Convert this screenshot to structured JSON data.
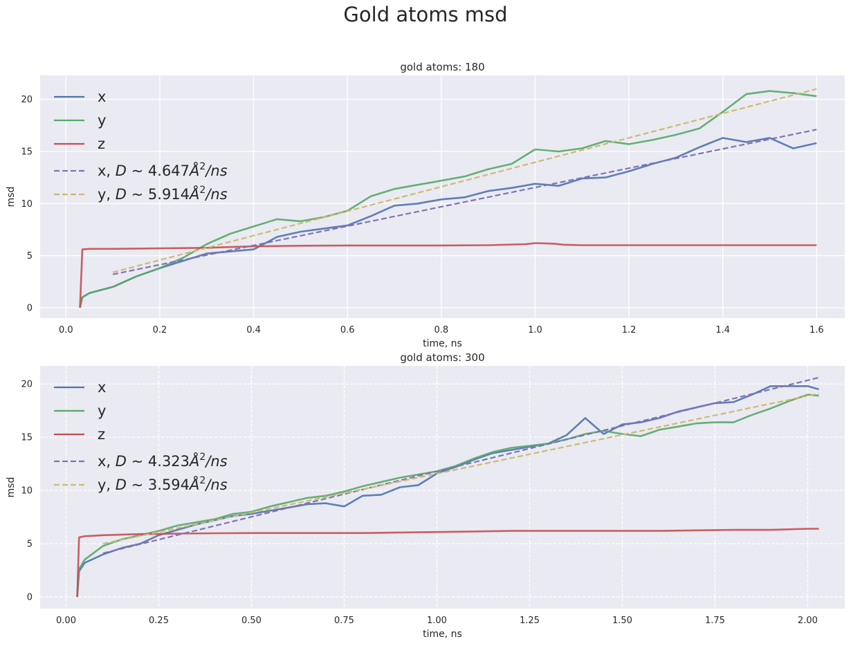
{
  "figure": {
    "suptitle": "Gold atoms msd",
    "background": "#ffffff",
    "axes_facecolor": "#eaeaf2",
    "grid_color": "#ffffff"
  },
  "chart_data": [
    {
      "type": "line",
      "title": "gold atoms: 180",
      "xlabel": "time, ns",
      "ylabel": "msd",
      "xlim": [
        -0.055,
        1.66
      ],
      "ylim": [
        -1.0,
        22.3
      ],
      "xticks": [
        0.0,
        0.2,
        0.4,
        0.6,
        0.8,
        1.0,
        1.2,
        1.4,
        1.6
      ],
      "xtick_labels": [
        "0.0",
        "0.2",
        "0.4",
        "0.6",
        "0.8",
        "1.0",
        "1.2",
        "1.4",
        "1.6"
      ],
      "yticks": [
        0,
        5,
        10,
        15,
        20
      ],
      "ytick_labels": [
        "0",
        "5",
        "10",
        "15",
        "20"
      ],
      "grid": "solid",
      "legend_position": "upper-left",
      "series": [
        {
          "name": "x",
          "color": "#4c72b0",
          "style": "solid",
          "x": [
            0.03,
            0.035,
            0.05,
            0.1,
            0.15,
            0.2,
            0.25,
            0.3,
            0.35,
            0.4,
            0.45,
            0.5,
            0.55,
            0.6,
            0.65,
            0.7,
            0.75,
            0.8,
            0.85,
            0.9,
            0.95,
            1.0,
            1.05,
            1.1,
            1.15,
            1.2,
            1.25,
            1.3,
            1.35,
            1.4,
            1.45,
            1.5,
            1.55,
            1.6
          ],
          "y": [
            0.0,
            1.0,
            1.4,
            2.0,
            3.0,
            3.8,
            4.5,
            5.2,
            5.4,
            5.6,
            6.8,
            7.3,
            7.6,
            7.9,
            8.8,
            9.8,
            10.0,
            10.4,
            10.6,
            11.2,
            11.5,
            11.9,
            11.7,
            12.4,
            12.5,
            13.1,
            13.8,
            14.4,
            15.4,
            16.3,
            15.9,
            16.3,
            15.3,
            15.8
          ]
        },
        {
          "name": "y",
          "color": "#55a868",
          "style": "solid",
          "x": [
            0.03,
            0.035,
            0.05,
            0.1,
            0.15,
            0.2,
            0.25,
            0.3,
            0.35,
            0.4,
            0.45,
            0.5,
            0.55,
            0.6,
            0.65,
            0.7,
            0.75,
            0.8,
            0.85,
            0.9,
            0.95,
            1.0,
            1.05,
            1.1,
            1.15,
            1.2,
            1.25,
            1.3,
            1.35,
            1.4,
            1.45,
            1.5,
            1.55,
            1.6
          ],
          "y": [
            0.0,
            1.0,
            1.4,
            2.0,
            3.0,
            3.8,
            4.8,
            6.1,
            7.1,
            7.8,
            8.5,
            8.3,
            8.7,
            9.3,
            10.7,
            11.4,
            11.8,
            12.2,
            12.6,
            13.3,
            13.8,
            15.2,
            15.0,
            15.3,
            16.0,
            15.7,
            16.1,
            16.6,
            17.2,
            18.8,
            20.5,
            20.8,
            20.6,
            20.3
          ]
        },
        {
          "name": "z",
          "color": "#c44e52",
          "style": "solid",
          "x": [
            0.03,
            0.035,
            0.05,
            0.1,
            0.2,
            0.3,
            0.4,
            0.5,
            0.6,
            0.7,
            0.8,
            0.9,
            0.98,
            1.0,
            1.04,
            1.06,
            1.1,
            1.2,
            1.3,
            1.4,
            1.5,
            1.6
          ],
          "y": [
            0.0,
            5.6,
            5.65,
            5.65,
            5.7,
            5.75,
            5.9,
            5.95,
            5.98,
            5.98,
            5.98,
            6.0,
            6.1,
            6.2,
            6.15,
            6.05,
            6.0,
            6.0,
            6.0,
            6.0,
            6.0,
            6.0
          ]
        },
        {
          "name": "x, D ~ 4.647Å²/ns",
          "color": "#8172b2",
          "style": "dashed",
          "x": [
            0.1,
            1.6
          ],
          "y": [
            3.2,
            17.1
          ]
        },
        {
          "name": "y, D ~ 5.914Å²/ns",
          "color": "#ccb974",
          "style": "dashed",
          "x": [
            0.1,
            1.6
          ],
          "y": [
            3.4,
            21.0
          ]
        }
      ],
      "legend_entries": [
        {
          "label": "x"
        },
        {
          "label": "y"
        },
        {
          "label": "z"
        },
        {
          "pre": "x, ",
          "math": "D",
          "op": " ~ ",
          "num": "4.647",
          "unit": "Å",
          "sup": "2",
          "tail": "/ns"
        },
        {
          "pre": "y, ",
          "math": "D",
          "op": " ~ ",
          "num": "5.914",
          "unit": "Å",
          "sup": "2",
          "tail": "/ns"
        }
      ]
    },
    {
      "type": "line",
      "title": "gold atoms: 300",
      "xlabel": "time, ns",
      "ylabel": "msd",
      "xlim": [
        -0.07,
        2.1
      ],
      "ylim": [
        -1.1,
        21.7
      ],
      "xticks": [
        0.0,
        0.25,
        0.5,
        0.75,
        1.0,
        1.25,
        1.5,
        1.75,
        2.0
      ],
      "xtick_labels": [
        "0.00",
        "0.25",
        "0.50",
        "0.75",
        "1.00",
        "1.25",
        "1.50",
        "1.75",
        "2.00"
      ],
      "yticks": [
        0,
        5,
        10,
        15,
        20
      ],
      "ytick_labels": [
        "0",
        "5",
        "10",
        "15",
        "20"
      ],
      "grid": "dashed",
      "legend_position": "upper-left",
      "series": [
        {
          "name": "x",
          "color": "#4c72b0",
          "style": "solid",
          "x": [
            0.03,
            0.035,
            0.05,
            0.1,
            0.15,
            0.2,
            0.25,
            0.3,
            0.35,
            0.4,
            0.45,
            0.5,
            0.55,
            0.6,
            0.65,
            0.7,
            0.75,
            0.8,
            0.85,
            0.9,
            0.95,
            1.0,
            1.05,
            1.1,
            1.15,
            1.2,
            1.25,
            1.3,
            1.35,
            1.4,
            1.45,
            1.5,
            1.55,
            1.6,
            1.65,
            1.7,
            1.75,
            1.8,
            1.85,
            1.9,
            1.95,
            2.0,
            2.03
          ],
          "y": [
            0.0,
            2.4,
            3.2,
            4.0,
            4.6,
            5.0,
            5.8,
            6.3,
            6.8,
            7.2,
            7.6,
            7.8,
            8.1,
            8.4,
            8.7,
            8.8,
            8.5,
            9.5,
            9.6,
            10.3,
            10.5,
            11.6,
            12.2,
            12.9,
            13.5,
            13.8,
            14.1,
            14.4,
            15.2,
            16.8,
            15.3,
            16.2,
            16.4,
            16.8,
            17.4,
            17.8,
            18.2,
            18.3,
            19.0,
            19.8,
            19.8,
            19.8,
            19.5
          ]
        },
        {
          "name": "y",
          "color": "#55a868",
          "style": "solid",
          "x": [
            0.03,
            0.035,
            0.05,
            0.1,
            0.15,
            0.2,
            0.25,
            0.3,
            0.35,
            0.4,
            0.45,
            0.5,
            0.55,
            0.6,
            0.65,
            0.7,
            0.75,
            0.8,
            0.85,
            0.9,
            0.95,
            1.0,
            1.05,
            1.1,
            1.15,
            1.2,
            1.25,
            1.3,
            1.35,
            1.4,
            1.45,
            1.5,
            1.55,
            1.6,
            1.65,
            1.7,
            1.75,
            1.8,
            1.85,
            1.9,
            1.95,
            2.0,
            2.03
          ],
          "y": [
            0.0,
            2.6,
            3.5,
            4.8,
            5.4,
            5.8,
            6.2,
            6.7,
            7.0,
            7.3,
            7.8,
            8.0,
            8.5,
            8.9,
            9.3,
            9.5,
            9.9,
            10.4,
            10.8,
            11.2,
            11.5,
            11.8,
            12.3,
            13.0,
            13.6,
            14.0,
            14.2,
            14.4,
            14.8,
            15.3,
            15.6,
            15.3,
            15.1,
            15.7,
            16.0,
            16.3,
            16.4,
            16.4,
            17.1,
            17.7,
            18.4,
            19.0,
            18.9
          ]
        },
        {
          "name": "z",
          "color": "#c44e52",
          "style": "solid",
          "x": [
            0.03,
            0.035,
            0.05,
            0.1,
            0.2,
            0.3,
            0.4,
            0.5,
            0.6,
            0.7,
            0.8,
            0.9,
            1.0,
            1.1,
            1.2,
            1.3,
            1.4,
            1.5,
            1.6,
            1.7,
            1.8,
            1.9,
            1.95,
            2.0,
            2.03
          ],
          "y": [
            0.0,
            5.6,
            5.7,
            5.8,
            5.9,
            5.95,
            5.98,
            6.0,
            6.0,
            6.0,
            6.0,
            6.05,
            6.1,
            6.15,
            6.2,
            6.2,
            6.2,
            6.2,
            6.2,
            6.25,
            6.3,
            6.3,
            6.35,
            6.4,
            6.4
          ]
        },
        {
          "name": "x, D ~ 4.323Å²/ns",
          "color": "#8172b2",
          "style": "dashed",
          "x": [
            0.1,
            2.03
          ],
          "y": [
            4.1,
            20.6
          ]
        },
        {
          "name": "y, D ~ 3.594Å²/ns",
          "color": "#ccb974",
          "style": "dashed",
          "x": [
            0.1,
            2.03
          ],
          "y": [
            5.0,
            19.1
          ]
        }
      ],
      "legend_entries": [
        {
          "label": "x"
        },
        {
          "label": "y"
        },
        {
          "label": "z"
        },
        {
          "pre": "x, ",
          "math": "D",
          "op": " ~ ",
          "num": "4.323",
          "unit": "Å",
          "sup": "2",
          "tail": "/ns"
        },
        {
          "pre": "y, ",
          "math": "D",
          "op": " ~ ",
          "num": "3.594",
          "unit": "Å",
          "sup": "2",
          "tail": "/ns"
        }
      ]
    }
  ]
}
